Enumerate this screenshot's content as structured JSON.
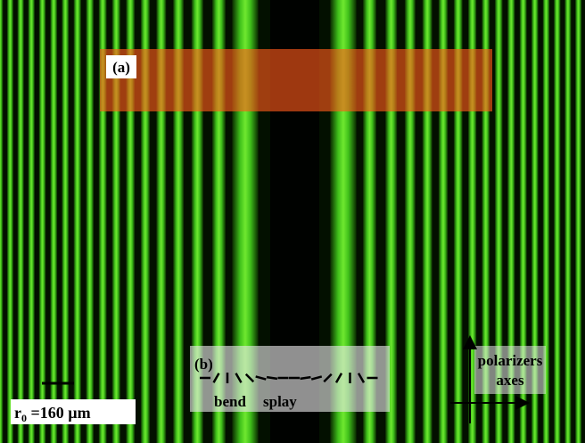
{
  "labels": {
    "a": "(a)",
    "b": "(b)",
    "bend": "bend",
    "splay": "splay",
    "polarizers": "polarizers",
    "axes": "axes"
  },
  "scale": {
    "symbol": "r",
    "subscript": "0",
    "text": " =160 µm"
  }
}
